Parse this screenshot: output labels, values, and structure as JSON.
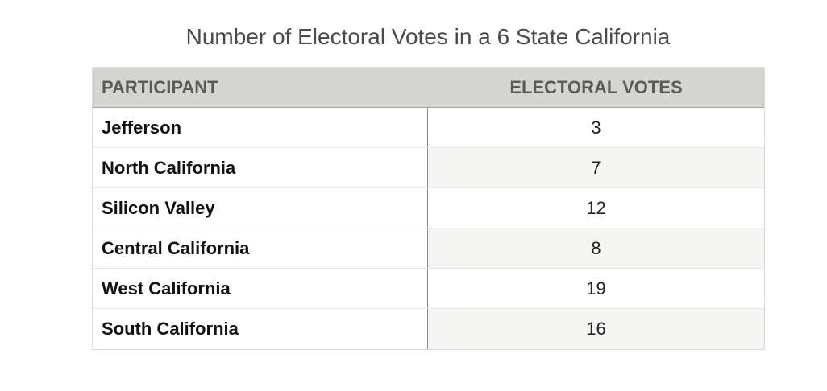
{
  "chart_data": {
    "type": "table",
    "title": "Number of Electoral Votes in a 6 State California",
    "columns": [
      "PARTICIPANT",
      "ELECTORAL VOTES"
    ],
    "rows": [
      {
        "participant": "Jefferson",
        "votes": "3"
      },
      {
        "participant": "North California",
        "votes": "7"
      },
      {
        "participant": "Silicon Valley",
        "votes": "12"
      },
      {
        "participant": "Central California",
        "votes": "8"
      },
      {
        "participant": "West California",
        "votes": "19"
      },
      {
        "participant": "South California",
        "votes": "16"
      }
    ]
  },
  "colors": {
    "header_bg": "#d4d4d1",
    "header_text": "#5b5b5b",
    "alt_row_bg": "#f5f5f4"
  }
}
